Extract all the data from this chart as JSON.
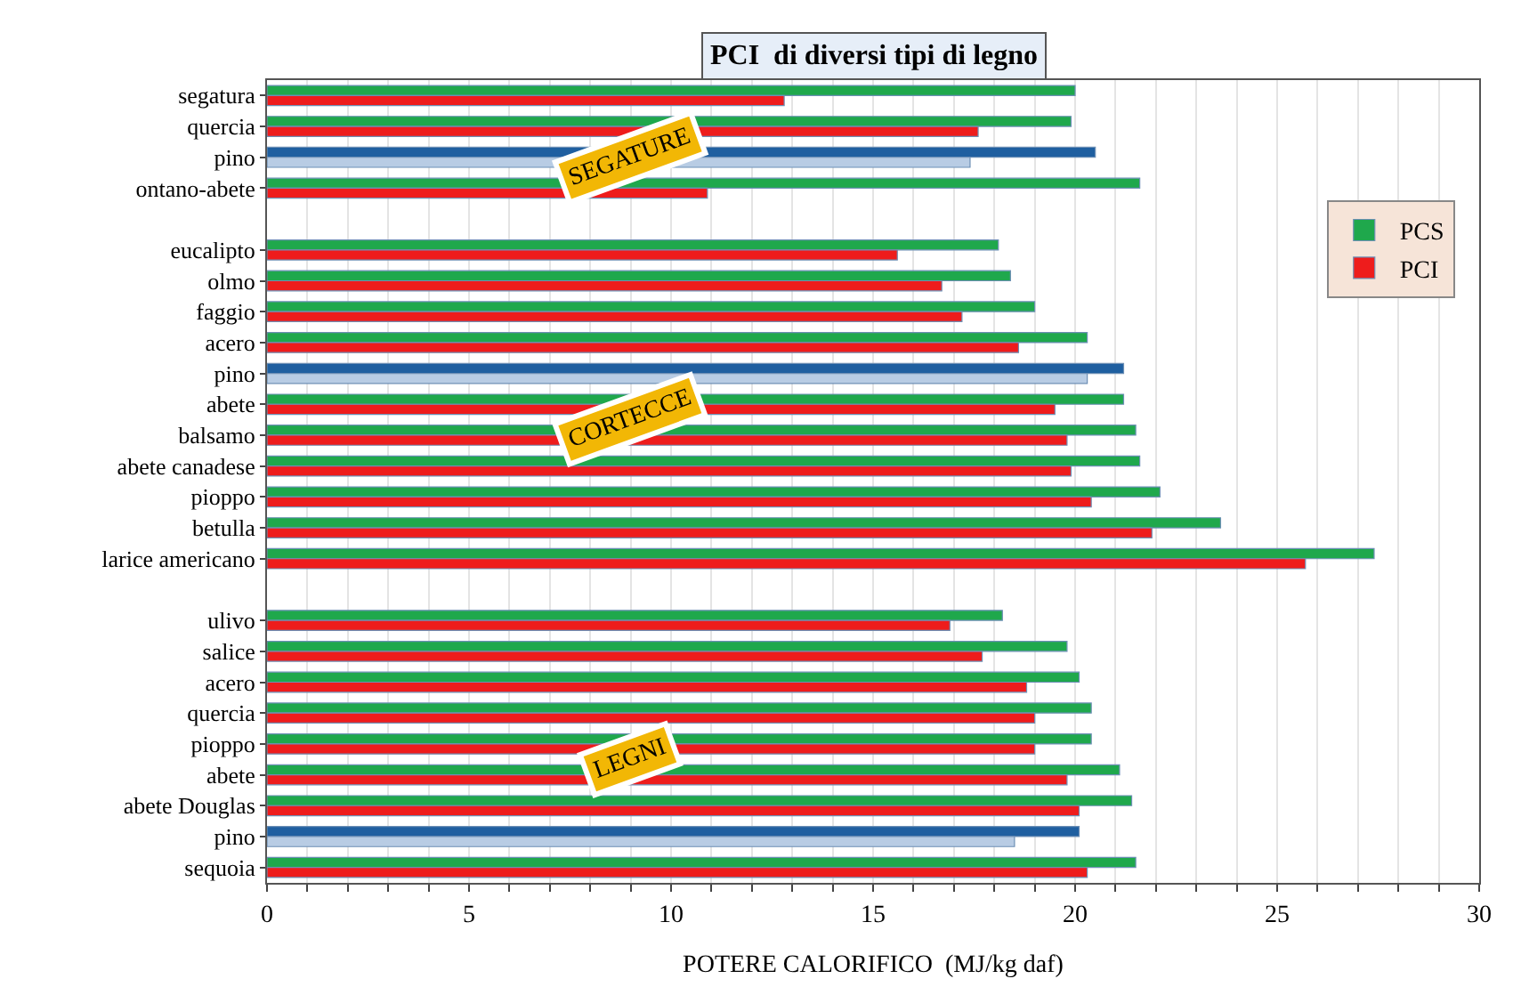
{
  "chart_data": {
    "type": "bar",
    "orientation": "horizontal",
    "title": "PCI  di diversi tipi di legno",
    "xlabel": "POTERE CALORIFICO  (MJ/kg daf)",
    "categories": [
      "segatura",
      "quercia",
      "pino",
      "ontano-abete",
      null,
      "eucalipto",
      "olmo",
      "faggio",
      "acero",
      "pino",
      "abete",
      "balsamo",
      "abete canadese",
      "pioppo",
      "betulla",
      "larice americano",
      null,
      "ulivo",
      "salice",
      "acero",
      "quercia",
      "pioppo",
      "abete",
      "abete Douglas",
      "pino",
      "sequoia"
    ],
    "series": [
      {
        "name": "PCS",
        "colors": [
          "#1fa84c",
          "#1fa84c",
          "#1f5fa0",
          "#1fa84c",
          null,
          "#1fa84c",
          "#1fa84c",
          "#1fa84c",
          "#1fa84c",
          "#1f5fa0",
          "#1fa84c",
          "#1fa84c",
          "#1fa84c",
          "#1fa84c",
          "#1fa84c",
          "#1fa84c",
          null,
          "#1fa84c",
          "#1fa84c",
          "#1fa84c",
          "#1fa84c",
          "#1fa84c",
          "#1fa84c",
          "#1fa84c",
          "#1f5fa0",
          "#1fa84c"
        ],
        "values": [
          20.0,
          19.9,
          20.5,
          21.6,
          null,
          18.1,
          18.4,
          19.0,
          20.3,
          21.2,
          21.2,
          21.5,
          21.6,
          22.1,
          23.6,
          27.4,
          null,
          18.2,
          19.8,
          20.1,
          20.4,
          20.4,
          21.1,
          21.4,
          20.1,
          21.5
        ]
      },
      {
        "name": "PCI",
        "colors": [
          "#ee1c1c",
          "#ee1c1c",
          "#b8cce4",
          "#ee1c1c",
          null,
          "#ee1c1c",
          "#ee1c1c",
          "#ee1c1c",
          "#ee1c1c",
          "#b8cce4",
          "#ee1c1c",
          "#ee1c1c",
          "#ee1c1c",
          "#ee1c1c",
          "#ee1c1c",
          "#ee1c1c",
          null,
          "#ee1c1c",
          "#ee1c1c",
          "#ee1c1c",
          "#ee1c1c",
          "#ee1c1c",
          "#ee1c1c",
          "#ee1c1c",
          "#b8cce4",
          "#ee1c1c"
        ],
        "values": [
          12.8,
          17.6,
          17.4,
          10.9,
          null,
          15.6,
          16.7,
          17.2,
          18.6,
          20.3,
          19.5,
          19.8,
          19.9,
          20.4,
          21.9,
          25.7,
          null,
          16.9,
          17.7,
          18.8,
          19.0,
          19.0,
          19.8,
          20.1,
          18.5,
          20.3
        ]
      }
    ],
    "xlim": [
      0,
      30
    ],
    "xticks": [
      0,
      {
        "value": 1,
        "label": null
      },
      {
        "value": 2,
        "label": null
      },
      {
        "value": 3,
        "label": null
      },
      {
        "value": 4,
        "label": null
      },
      5,
      {
        "value": 6,
        "label": null
      },
      {
        "value": 7,
        "label": null
      },
      {
        "value": 8,
        "label": null
      },
      {
        "value": 9,
        "label": null
      },
      10,
      {
        "value": 11,
        "label": null
      },
      {
        "value": 12,
        "label": null
      },
      {
        "value": 13,
        "label": null
      },
      {
        "value": 14,
        "label": null
      },
      15,
      {
        "value": 16,
        "label": null
      },
      {
        "value": 17,
        "label": null
      },
      {
        "value": 18,
        "label": null
      },
      {
        "value": 19,
        "label": null
      },
      20,
      {
        "value": 21,
        "label": null
      },
      {
        "value": 22,
        "label": null
      },
      {
        "value": 23,
        "label": null
      },
      {
        "value": 24,
        "label": null
      },
      25,
      {
        "value": 26,
        "label": null
      },
      {
        "value": 27,
        "label": null
      },
      {
        "value": 28,
        "label": null
      },
      {
        "value": 29,
        "label": null
      },
      30
    ],
    "annotations": [
      "SEGATURE",
      "CORTECCE",
      "LEGNI"
    ],
    "grid": "x",
    "legend": "top right"
  }
}
